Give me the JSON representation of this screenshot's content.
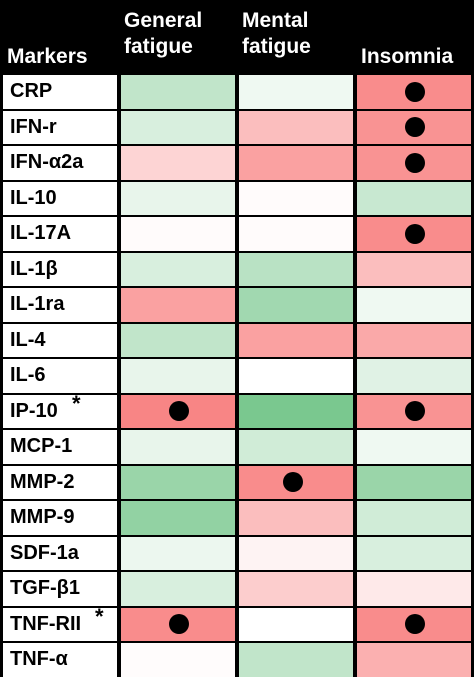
{
  "chart_data": {
    "type": "heatmap",
    "row_header": "Markers",
    "columns": [
      "General fatigue",
      "Mental fatigue",
      "Insomnia"
    ],
    "rows": [
      {
        "label": "CRP",
        "marked": false,
        "values": [
          -0.4,
          -0.1,
          0.8
        ],
        "significant": [
          false,
          false,
          true
        ]
      },
      {
        "label": "IFN-r",
        "marked": false,
        "values": [
          -0.25,
          0.45,
          0.75
        ],
        "significant": [
          false,
          false,
          true
        ]
      },
      {
        "label": "IFN-α2a",
        "marked": false,
        "values": [
          0.3,
          0.65,
          0.75
        ],
        "significant": [
          false,
          false,
          true
        ]
      },
      {
        "label": "IL-10",
        "marked": false,
        "values": [
          -0.15,
          0.03,
          -0.35
        ],
        "significant": [
          false,
          false,
          false
        ]
      },
      {
        "label": "IL-17A",
        "marked": false,
        "values": [
          0.03,
          0.03,
          0.8
        ],
        "significant": [
          false,
          false,
          true
        ]
      },
      {
        "label": "IL-1β",
        "marked": false,
        "values": [
          -0.25,
          -0.45,
          0.45
        ],
        "significant": [
          false,
          false,
          false
        ]
      },
      {
        "label": "IL-1ra",
        "marked": false,
        "values": [
          0.65,
          -0.6,
          -0.1
        ],
        "significant": [
          false,
          false,
          false
        ]
      },
      {
        "label": "IL-4",
        "marked": false,
        "values": [
          -0.4,
          0.65,
          0.6
        ],
        "significant": [
          false,
          false,
          false
        ]
      },
      {
        "label": "IL-6",
        "marked": false,
        "values": [
          -0.15,
          0.0,
          -0.2
        ],
        "significant": [
          false,
          false,
          false
        ]
      },
      {
        "label": "IP-10",
        "marked": true,
        "values": [
          0.85,
          -0.85,
          0.75
        ],
        "significant": [
          true,
          false,
          true
        ]
      },
      {
        "label": "MCP-1",
        "marked": false,
        "values": [
          -0.15,
          -0.3,
          -0.1
        ],
        "significant": [
          false,
          false,
          false
        ]
      },
      {
        "label": "MMP-2",
        "marked": false,
        "values": [
          -0.65,
          0.8,
          -0.65
        ],
        "significant": [
          false,
          true,
          false
        ]
      },
      {
        "label": "MMP-9",
        "marked": false,
        "values": [
          -0.7,
          0.45,
          -0.3
        ],
        "significant": [
          false,
          false,
          false
        ]
      },
      {
        "label": "SDF-1a",
        "marked": false,
        "values": [
          -0.12,
          0.08,
          -0.25
        ],
        "significant": [
          false,
          false,
          false
        ]
      },
      {
        "label": "TGF-β1",
        "marked": false,
        "values": [
          -0.25,
          0.35,
          0.15
        ],
        "significant": [
          false,
          false,
          false
        ]
      },
      {
        "label": "TNF-RII",
        "marked": true,
        "values": [
          0.8,
          0.0,
          0.8
        ],
        "significant": [
          true,
          false,
          true
        ]
      },
      {
        "label": "TNF-α",
        "marked": false,
        "values": [
          0.02,
          -0.4,
          0.55
        ],
        "significant": [
          false,
          false,
          false
        ]
      }
    ],
    "marker_symbol": "*",
    "colors": {
      "positive": "#f76f6f",
      "negative": "#63be7b",
      "neutral": "#ffffff",
      "dot": "#000000",
      "background": "#000000"
    },
    "vlim": [
      -1,
      1
    ],
    "legend": "none",
    "grid": true
  }
}
